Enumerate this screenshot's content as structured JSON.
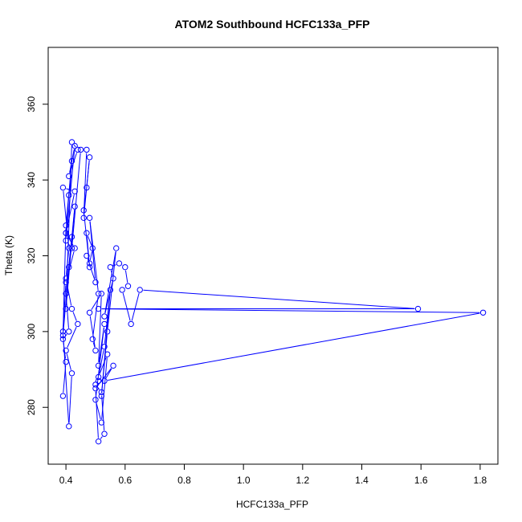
{
  "chart_data": {
    "type": "scatter",
    "title": "ATOM2 Southbound HCFC133a_PFP",
    "xlabel": "HCFC133a_PFP",
    "ylabel": "Theta (K)",
    "xlim": [
      0.34,
      1.86
    ],
    "ylim": [
      265,
      375
    ],
    "xticks": [
      "0.4",
      "0.6",
      "0.8",
      "1.0",
      "1.2",
      "1.4",
      "1.6",
      "1.8"
    ],
    "yticks": [
      "280",
      "300",
      "320",
      "340",
      "360"
    ],
    "grid": false,
    "legend": "none",
    "style": "points connected by lines (type b)",
    "color": "#0000ff",
    "series": [
      {
        "x": [
          0.39,
          0.4,
          0.39,
          0.41,
          0.4,
          0.42,
          0.4,
          0.43,
          0.39,
          0.41,
          0.4,
          0.42,
          0.44,
          0.4,
          0.42,
          0.41,
          0.39,
          0.4,
          0.43,
          0.4,
          0.41,
          0.42,
          0.4,
          0.39,
          0.41,
          0.43,
          0.4,
          0.42,
          0.44,
          0.41,
          0.43,
          0.4,
          0.42,
          0.45,
          0.47,
          0.46,
          0.48,
          0.47,
          0.46,
          0.48,
          0.47,
          0.49,
          0.48,
          0.47,
          0.5,
          0.48,
          0.51,
          0.49,
          0.5,
          0.48,
          0.52,
          0.51,
          0.53,
          0.5,
          0.52,
          0.54,
          0.51,
          0.53,
          0.55,
          0.52,
          0.54,
          0.57,
          0.53,
          0.56,
          0.55,
          0.58,
          0.6,
          0.61,
          0.59,
          0.62,
          0.65,
          1.59,
          0.51,
          1.81,
          0.53,
          0.56,
          0.5,
          0.51,
          0.53,
          0.52,
          0.5,
          0.51
        ],
        "y": [
          283,
          292,
          298,
          300,
          310,
          325,
          326,
          337,
          338,
          322,
          314,
          306,
          302,
          295,
          289,
          275,
          300,
          313,
          322,
          326,
          336,
          345,
          328,
          299,
          317,
          333,
          306,
          350,
          348,
          341,
          349,
          324,
          322,
          348,
          348,
          330,
          346,
          338,
          332,
          317,
          326,
          322,
          318,
          320,
          313,
          330,
          310,
          298,
          295,
          305,
          310,
          291,
          302,
          282,
          276,
          294,
          288,
          296,
          311,
          283,
          300,
          322,
          304,
          314,
          317,
          318,
          317,
          312,
          311,
          302,
          311,
          306,
          306,
          305,
          287,
          291,
          285,
          271,
          273,
          284,
          286,
          287
        ]
      }
    ]
  }
}
